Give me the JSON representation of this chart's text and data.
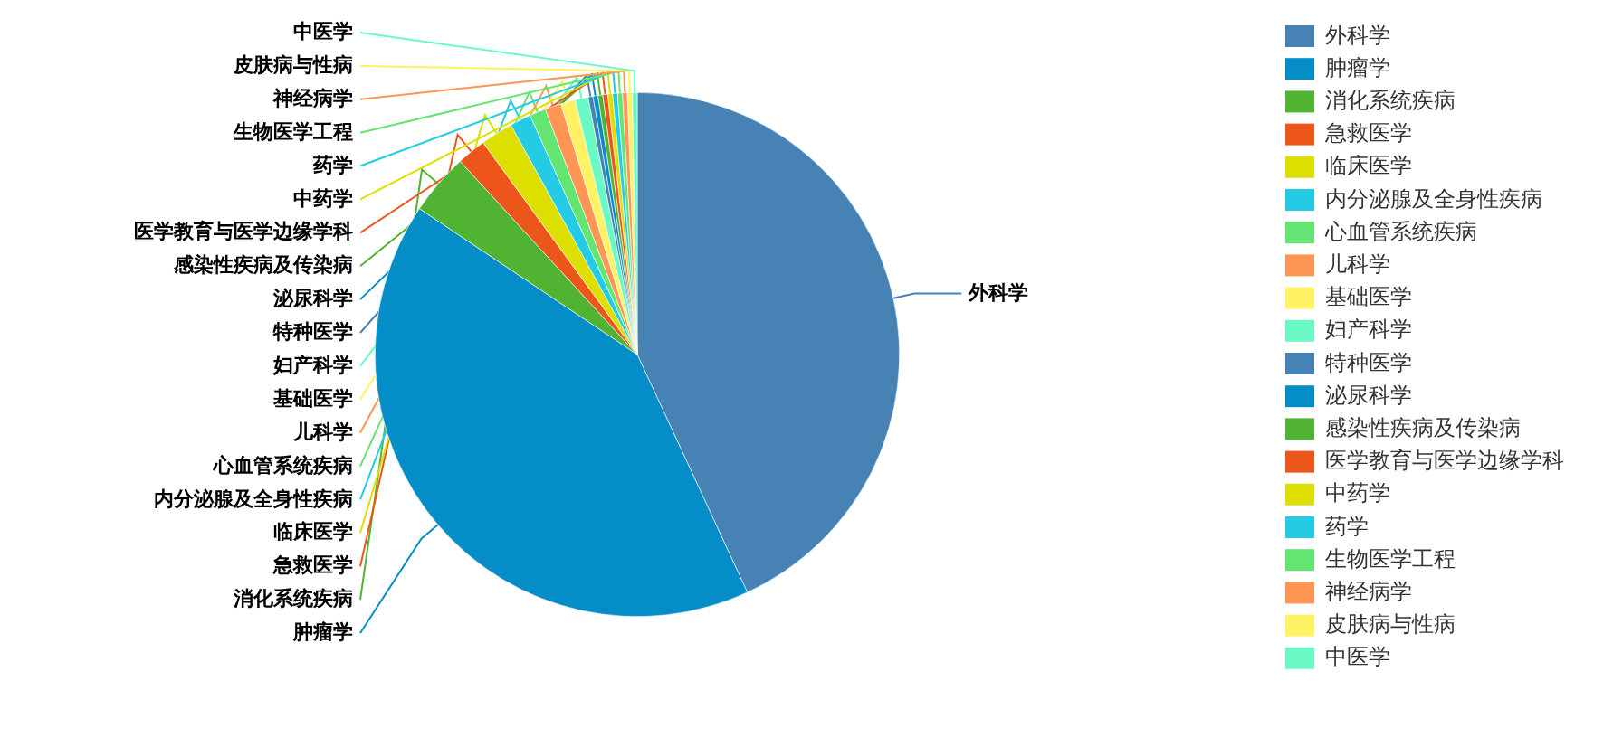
{
  "chart_data": {
    "type": "pie",
    "legend": "right",
    "categories": [
      "外科学",
      "肿瘤学",
      "消化系统疾病",
      "急救医学",
      "临床医学",
      "内分泌腺及全身性疾病",
      "心血管系统疾病",
      "儿科学",
      "基础医学",
      "妇产科学",
      "特种医学",
      "泌尿科学",
      "感染性疾病及传染病",
      "医学教育与医学边缘学科",
      "中药学",
      "药学",
      "生物医学工程",
      "神经病学",
      "皮肤病与性病",
      "中医学"
    ],
    "values": [
      43.1,
      41.3,
      3.8,
      1.8,
      2.0,
      1.3,
      1.0,
      1.0,
      0.9,
      0.8,
      0.3,
      0.3,
      0.3,
      0.3,
      0.3,
      0.3,
      0.3,
      0.3,
      0.3,
      0.3
    ],
    "colors": [
      "#4682b4",
      "#058dc7",
      "#50b432",
      "#ed561b",
      "#dddf00",
      "#24cbe5",
      "#64e572",
      "#ff9655",
      "#fff263",
      "#6af9c4",
      "#4682b4",
      "#058dc7",
      "#50b432",
      "#ed561b",
      "#dddf00",
      "#24cbe5",
      "#64e572",
      "#ff9655",
      "#fff263",
      "#6af9c4"
    ]
  }
}
